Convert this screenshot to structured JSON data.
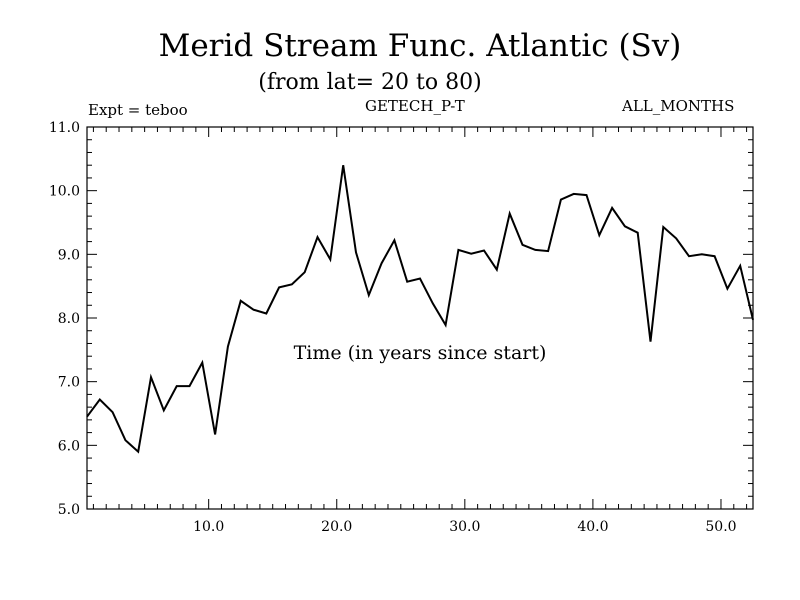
{
  "chart_data": {
    "type": "line",
    "title": "Merid Stream Func. Atlantic (Sv)",
    "subtitle": "(from lat= 20 to 80)",
    "annotations": {
      "left": "Expt = teboo",
      "center": "GETECH_P-T",
      "right": "ALL_MONTHS"
    },
    "xlabel": "Time (in years since start)",
    "ylabel": "",
    "xlim": [
      0.5,
      52.5
    ],
    "ylim": [
      5.0,
      11.0
    ],
    "xticks": [
      {
        "value": 10,
        "label": "10.0"
      },
      {
        "value": 20,
        "label": "20.0"
      },
      {
        "value": 30,
        "label": "30.0"
      },
      {
        "value": 40,
        "label": "40.0"
      },
      {
        "value": 50,
        "label": "50.0"
      }
    ],
    "yticks": [
      {
        "value": 5,
        "label": "5.0"
      },
      {
        "value": 6,
        "label": "6.0"
      },
      {
        "value": 7,
        "label": "7.0"
      },
      {
        "value": 8,
        "label": "8.0"
      },
      {
        "value": 9,
        "label": "9.0"
      },
      {
        "value": 10,
        "label": "10.0"
      },
      {
        "value": 11,
        "label": "11.0"
      }
    ],
    "x_minor_step": 1,
    "y_minor_step": 0.2,
    "grid": false,
    "series": [
      {
        "name": "Merid Stream Func. Atlantic",
        "x": [
          0.5,
          1.5,
          2.5,
          3.5,
          4.5,
          5.5,
          6.5,
          7.5,
          8.5,
          9.5,
          10.5,
          11.5,
          12.5,
          13.5,
          14.5,
          15.5,
          16.5,
          17.5,
          18.5,
          19.5,
          20.5,
          21.5,
          22.5,
          23.5,
          24.5,
          25.5,
          26.5,
          27.5,
          28.5,
          29.5,
          30.5,
          31.5,
          32.5,
          33.5,
          34.5,
          35.5,
          36.5,
          37.5,
          38.5,
          39.5,
          40.5,
          41.5,
          42.5,
          43.5,
          44.5,
          45.5,
          46.5,
          47.5,
          48.5,
          49.5,
          50.5,
          51.5,
          52.5
        ],
        "values": [
          6.45,
          6.72,
          6.52,
          6.08,
          5.9,
          7.07,
          6.55,
          6.93,
          6.93,
          7.3,
          6.17,
          7.55,
          8.27,
          8.13,
          8.07,
          8.48,
          8.53,
          8.72,
          9.27,
          8.92,
          10.4,
          9.03,
          8.36,
          8.86,
          9.22,
          8.57,
          8.62,
          8.23,
          7.89,
          9.07,
          9.01,
          9.06,
          8.76,
          9.64,
          9.15,
          9.07,
          9.05,
          9.86,
          9.95,
          9.93,
          9.3,
          9.73,
          9.44,
          9.34,
          7.63,
          9.43,
          9.25,
          8.97,
          9.0,
          8.97,
          8.46,
          8.82,
          7.97
        ]
      }
    ]
  }
}
